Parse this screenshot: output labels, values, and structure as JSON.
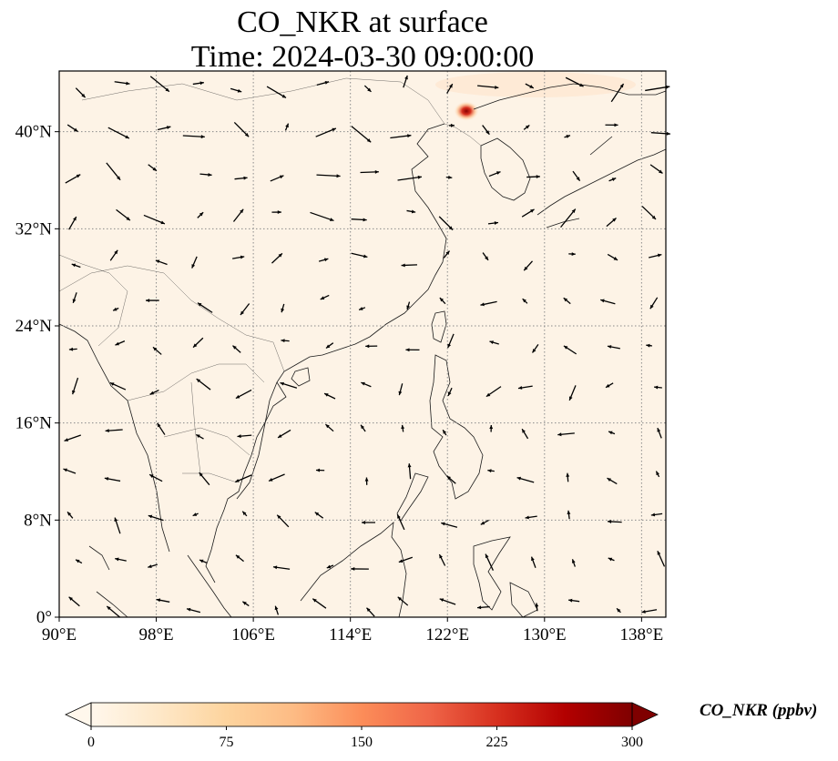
{
  "title": {
    "line1": "CO_NKR at surface",
    "line2": "Time: 2024-03-30 09:00:00"
  },
  "map": {
    "lon_range": [
      90,
      140
    ],
    "lat_range": [
      0,
      45
    ],
    "lat_ticks": [
      {
        "value": 40,
        "label": "40°N"
      },
      {
        "value": 32,
        "label": "32°N"
      },
      {
        "value": 24,
        "label": "24°N"
      },
      {
        "value": 16,
        "label": "16°N"
      },
      {
        "value": 8,
        "label": "8°N"
      },
      {
        "value": 0,
        "label": "0°"
      }
    ],
    "lon_ticks": [
      {
        "value": 90,
        "label": "90°E"
      },
      {
        "value": 98,
        "label": "98°E"
      },
      {
        "value": 106,
        "label": "106°E"
      },
      {
        "value": 114,
        "label": "114°E"
      },
      {
        "value": 122,
        "label": "122°E"
      },
      {
        "value": 130,
        "label": "130°E"
      },
      {
        "value": 138,
        "label": "138°E"
      }
    ],
    "gridlines": true,
    "hotspot": {
      "lon": 123.5,
      "lat": 42.0,
      "value_ppbv": 300
    },
    "colors": {
      "background_field": "#fdf3e6",
      "coast": "#1a1a1a",
      "grid": "#8a8a8a",
      "arrow": "#000000"
    }
  },
  "colorbar": {
    "label": "CO_NKR (ppbv)",
    "min": 0,
    "max": 300,
    "extend": "both",
    "ticks": [
      {
        "value": 0,
        "label": "0"
      },
      {
        "value": 75,
        "label": "75"
      },
      {
        "value": 150,
        "label": "150"
      },
      {
        "value": 225,
        "label": "225"
      },
      {
        "value": 300,
        "label": "300"
      }
    ],
    "colormap": [
      "#fff7ec",
      "#fee8c8",
      "#fdd49e",
      "#fdbb84",
      "#fc8d59",
      "#ef6548",
      "#d7301f",
      "#b30000",
      "#7f0000"
    ]
  }
}
